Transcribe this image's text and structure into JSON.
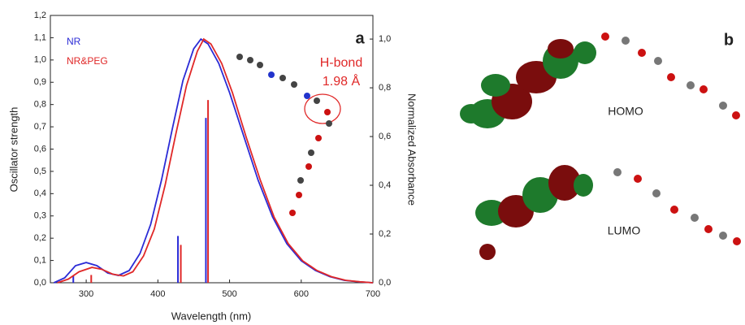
{
  "chart_data": {
    "type": "line",
    "x_label": "Wavelength (nm)",
    "y_label": "Oscillator strength",
    "y2_label": "Normalized Absorbance",
    "xlim": [
      250,
      700
    ],
    "xticks": [
      300,
      400,
      500,
      600,
      700
    ],
    "ylim": [
      0,
      1.2
    ],
    "yticks": [
      {
        "value": 0,
        "label": "0,0"
      },
      {
        "value": 0.1,
        "label": "0,1"
      },
      {
        "value": 0.2,
        "label": "0,2"
      },
      {
        "value": 0.3,
        "label": "0,3"
      },
      {
        "value": 0.4,
        "label": "0,4"
      },
      {
        "value": 0.5,
        "label": "0,5"
      },
      {
        "value": 0.6,
        "label": "0,6"
      },
      {
        "value": 0.7,
        "label": "0,7"
      },
      {
        "value": 0.8,
        "label": "0,8"
      },
      {
        "value": 0.9,
        "label": "0,9"
      },
      {
        "value": 1.0,
        "label": "1,0"
      },
      {
        "value": 1.1,
        "label": "1,1"
      },
      {
        "value": 1.2,
        "label": "1,2"
      }
    ],
    "y2lim": [
      0,
      1.097
    ],
    "y2ticks": [
      {
        "value": 0,
        "label": "0,0"
      },
      {
        "value": 0.2,
        "label": "0,2"
      },
      {
        "value": 0.4,
        "label": "0,4"
      },
      {
        "value": 0.6,
        "label": "0,6"
      },
      {
        "value": 0.8,
        "label": "0,8"
      },
      {
        "value": 1.0,
        "label": "1,0"
      }
    ],
    "series": [
      {
        "name": "NR",
        "color": "#2b2bd6",
        "axis": "y2",
        "x": [
          255,
          270,
          285,
          300,
          315,
          330,
          345,
          360,
          375,
          390,
          405,
          420,
          435,
          450,
          460,
          470,
          485,
          500,
          520,
          540,
          560,
          580,
          600,
          620,
          640,
          660,
          680,
          700
        ],
        "values": [
          0,
          0.02,
          0.07,
          0.083,
          0.07,
          0.04,
          0.03,
          0.05,
          0.12,
          0.24,
          0.42,
          0.63,
          0.83,
          0.96,
          1.0,
          0.98,
          0.9,
          0.78,
          0.6,
          0.42,
          0.27,
          0.16,
          0.09,
          0.05,
          0.025,
          0.01,
          0.004,
          0
        ],
        "sticks": {
          "x": [
            282,
            428,
            467
          ],
          "values": [
            0.03,
            0.21,
            0.74
          ]
        }
      },
      {
        "name": "NR&PEG",
        "color": "#e02828",
        "axis": "y2",
        "x": [
          260,
          275,
          290,
          308,
          322,
          337,
          352,
          365,
          380,
          395,
          410,
          425,
          440,
          455,
          464,
          474,
          489,
          504,
          523,
          543,
          562,
          582,
          602,
          622,
          642,
          662,
          682,
          700
        ],
        "values": [
          0,
          0.015,
          0.045,
          0.063,
          0.055,
          0.035,
          0.028,
          0.045,
          0.11,
          0.22,
          0.4,
          0.61,
          0.81,
          0.95,
          1.0,
          0.98,
          0.9,
          0.78,
          0.6,
          0.42,
          0.27,
          0.16,
          0.09,
          0.05,
          0.025,
          0.01,
          0.004,
          0
        ],
        "sticks": {
          "x": [
            307,
            432,
            470
          ],
          "values": [
            0.035,
            0.17,
            0.82
          ]
        }
      }
    ],
    "annotations": {
      "panel_a": "a",
      "panel_b": "b",
      "hbond": "H-bond",
      "distance": "1.98 Å",
      "homo": "HOMO",
      "lumo": "LUMO"
    }
  }
}
